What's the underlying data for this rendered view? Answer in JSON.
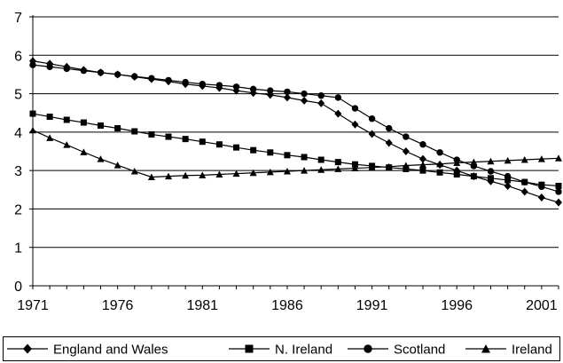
{
  "chart_data": {
    "type": "line",
    "title": "",
    "xlabel": "",
    "ylabel": "",
    "xlim": [
      1971,
      2002
    ],
    "ylim": [
      0,
      7
    ],
    "y_ticks": [
      0,
      1,
      2,
      3,
      4,
      5,
      6,
      7
    ],
    "x_ticks": [
      1971,
      1976,
      1981,
      1986,
      1991,
      1996,
      2001
    ],
    "grid": "horizontal",
    "legend_position": "bottom",
    "series": [
      {
        "name": "England and Wales",
        "marker": "diamond",
        "x": [
          1971,
          1972,
          1973,
          1974,
          1975,
          1976,
          1977,
          1978,
          1979,
          1980,
          1981,
          1982,
          1983,
          1984,
          1985,
          1986,
          1987,
          1988,
          1989,
          1990,
          1991,
          1992,
          1993,
          1994,
          1995,
          1996,
          1997,
          1998,
          1999,
          2000,
          2001,
          2002
        ],
        "y": [
          5.85,
          5.78,
          5.7,
          5.62,
          5.55,
          5.5,
          5.44,
          5.38,
          5.32,
          5.25,
          5.2,
          5.15,
          5.08,
          5.02,
          4.97,
          4.9,
          4.82,
          4.75,
          4.48,
          4.2,
          3.95,
          3.72,
          3.5,
          3.3,
          3.15,
          3.0,
          2.85,
          2.72,
          2.6,
          2.45,
          2.3,
          2.17
        ]
      },
      {
        "name": "N. Ireland",
        "marker": "square",
        "x": [
          1971,
          1972,
          1973,
          1974,
          1975,
          1976,
          1977,
          1978,
          1979,
          1980,
          1981,
          1982,
          1983,
          1984,
          1985,
          1986,
          1987,
          1988,
          1989,
          1990,
          1991,
          1992,
          1993,
          1994,
          1995,
          1996,
          1997,
          1998,
          1999,
          2000,
          2001,
          2002
        ],
        "y": [
          4.48,
          4.4,
          4.32,
          4.25,
          4.17,
          4.1,
          4.02,
          3.94,
          3.88,
          3.82,
          3.75,
          3.68,
          3.6,
          3.53,
          3.47,
          3.4,
          3.35,
          3.28,
          3.22,
          3.16,
          3.12,
          3.08,
          3.04,
          3.0,
          2.95,
          2.9,
          2.85,
          2.8,
          2.75,
          2.7,
          2.63,
          2.6
        ]
      },
      {
        "name": "Scotland",
        "marker": "circle",
        "x": [
          1971,
          1972,
          1973,
          1974,
          1975,
          1976,
          1977,
          1978,
          1979,
          1980,
          1981,
          1982,
          1983,
          1984,
          1985,
          1986,
          1987,
          1988,
          1989,
          1990,
          1991,
          1992,
          1993,
          1994,
          1995,
          1996,
          1997,
          1998,
          1999,
          2000,
          2001,
          2002
        ],
        "y": [
          5.75,
          5.7,
          5.65,
          5.6,
          5.55,
          5.5,
          5.45,
          5.4,
          5.35,
          5.3,
          5.25,
          5.22,
          5.18,
          5.12,
          5.08,
          5.05,
          5.0,
          4.95,
          4.9,
          4.62,
          4.35,
          4.1,
          3.88,
          3.68,
          3.47,
          3.28,
          3.12,
          2.98,
          2.85,
          2.7,
          2.58,
          2.45
        ]
      },
      {
        "name": "Ireland",
        "marker": "triangle",
        "x": [
          1971,
          1972,
          1973,
          1974,
          1975,
          1976,
          1977,
          1978,
          1979,
          1980,
          1981,
          1982,
          1983,
          1984,
          1985,
          1986,
          1987,
          1988,
          1989,
          1990,
          1991,
          1992,
          1993,
          1994,
          1995,
          1996,
          1997,
          1998,
          1999,
          2000,
          2001,
          2002
        ],
        "y": [
          4.05,
          3.85,
          3.67,
          3.48,
          3.3,
          3.14,
          2.98,
          2.83,
          2.85,
          2.87,
          2.88,
          2.9,
          2.92,
          2.94,
          2.96,
          2.98,
          3.0,
          3.02,
          3.04,
          3.06,
          3.08,
          3.1,
          3.13,
          3.15,
          3.17,
          3.2,
          3.22,
          3.24,
          3.26,
          3.28,
          3.3,
          3.32
        ]
      }
    ]
  }
}
